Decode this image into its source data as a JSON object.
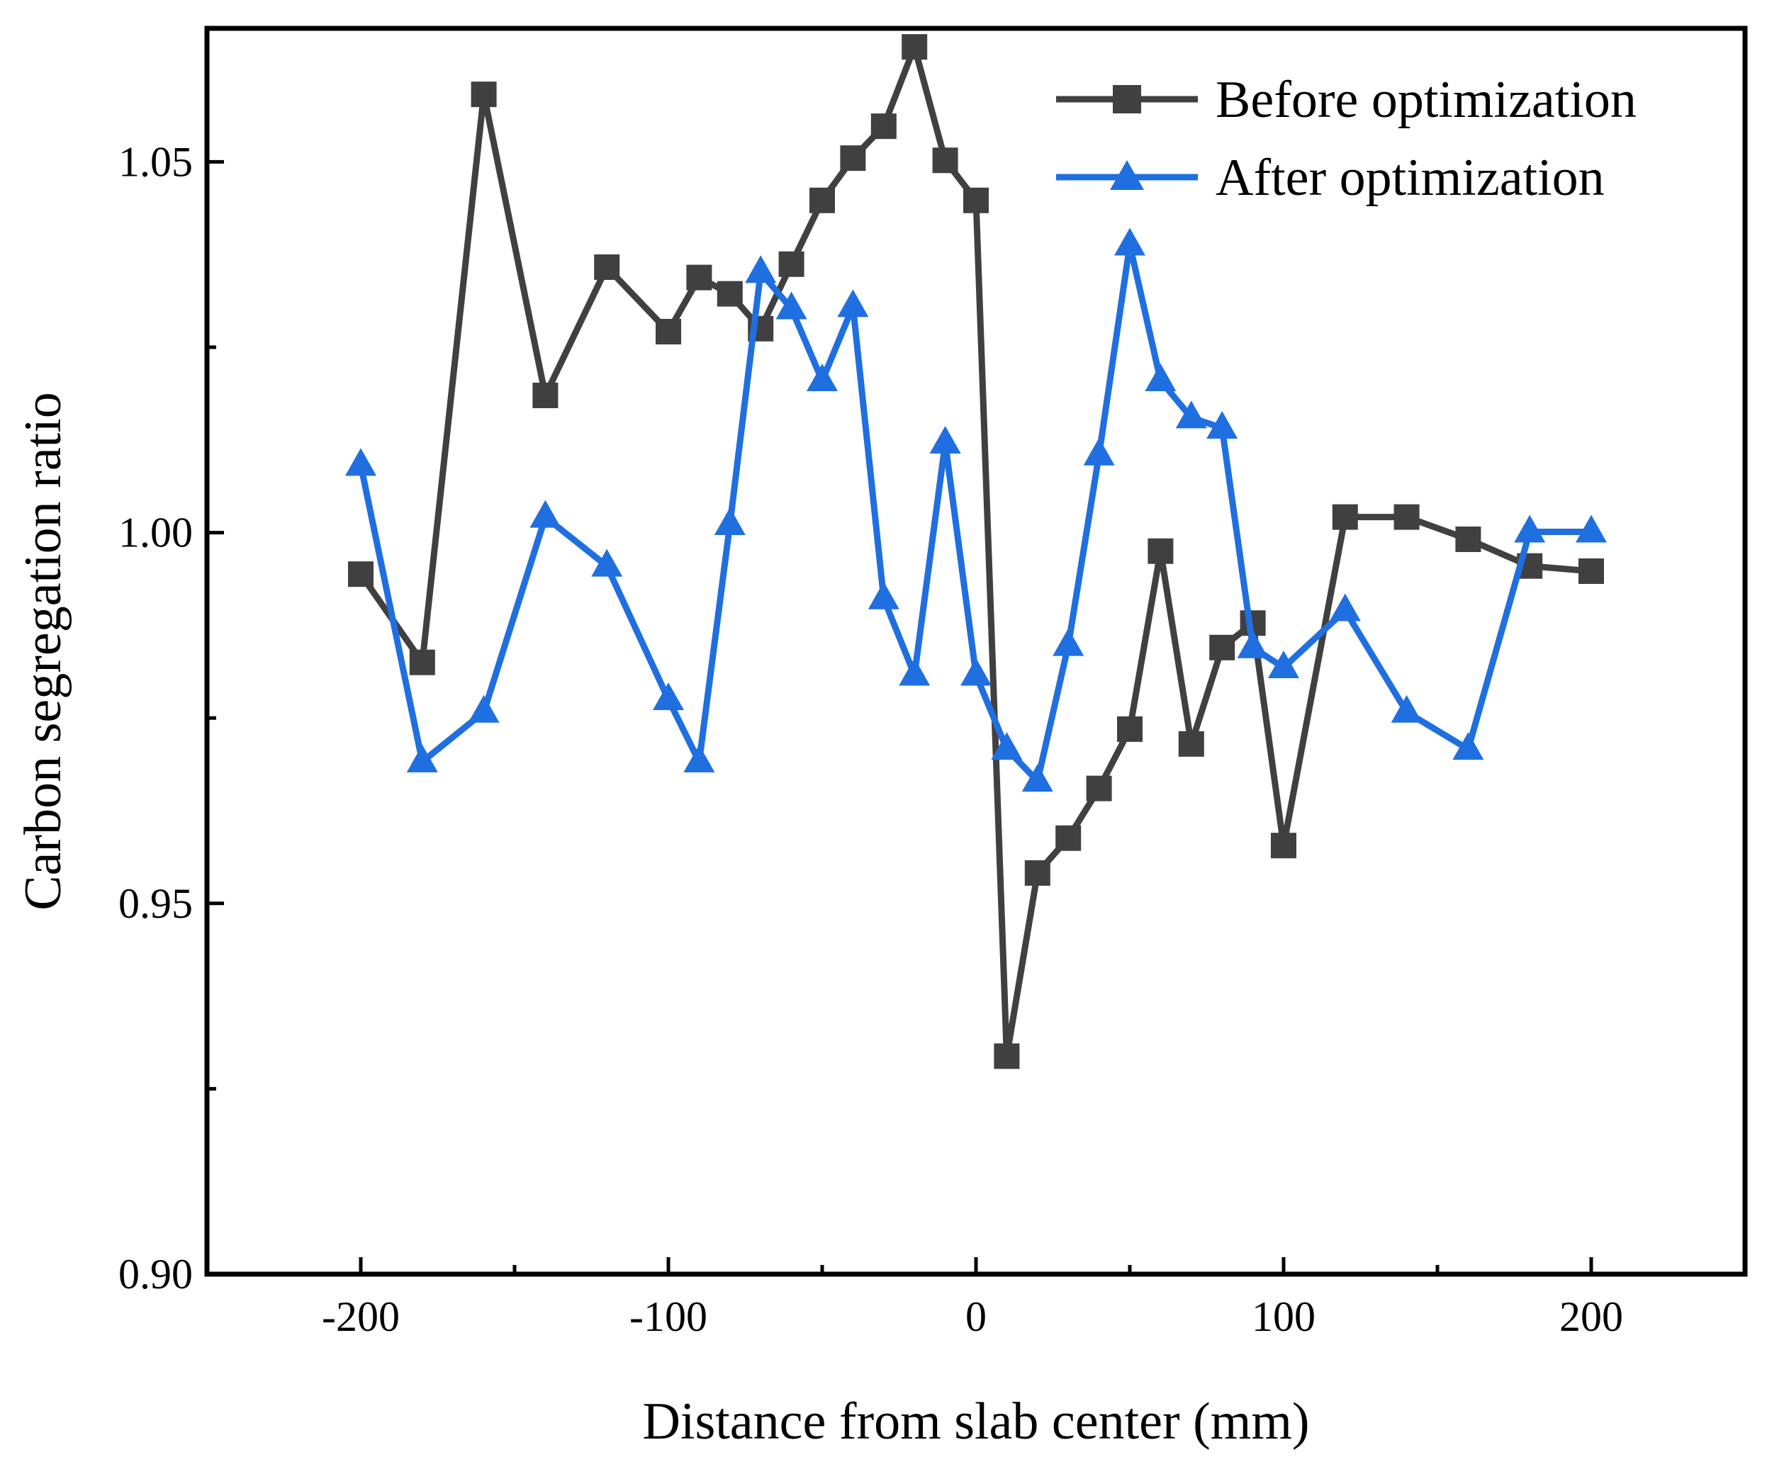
{
  "chart_data": {
    "type": "line",
    "title": "",
    "xlabel": "Distance from slab center (mm)",
    "ylabel": "Carbon segregation ratio",
    "xlim": [
      -250,
      250
    ],
    "ylim": [
      0.9,
      1.068
    ],
    "x_ticks": [
      -200,
      -100,
      0,
      100,
      200
    ],
    "x_tick_labels": [
      "-200",
      "-100",
      "0",
      "100",
      "200"
    ],
    "y_ticks": [
      0.9,
      0.95,
      1.0,
      1.05
    ],
    "y_tick_labels": [
      "0.90",
      "0.95",
      "1.00",
      "1.05"
    ],
    "grid": false,
    "legend_position": "top-right",
    "series": [
      {
        "name": "Before optimization",
        "color": "#404040",
        "marker": "square",
        "x": [
          -200,
          -180,
          -160,
          -140,
          -120,
          -100,
          -90,
          -80,
          -70,
          -60,
          -50,
          -40,
          -30,
          -20,
          -10,
          0,
          10,
          20,
          30,
          40,
          50,
          60,
          70,
          80,
          90,
          100,
          120,
          140,
          160,
          180,
          200
        ],
        "y": [
          0.9944,
          0.9825,
          1.0591,
          1.0185,
          1.0358,
          1.0271,
          1.0344,
          1.0322,
          1.0275,
          1.0362,
          1.0448,
          1.0505,
          1.0548,
          1.0655,
          1.0502,
          1.0448,
          0.9294,
          0.9541,
          0.9588,
          0.9655,
          0.9735,
          0.9975,
          0.9715,
          0.9845,
          0.9878,
          0.9578,
          1.0021,
          1.0021,
          0.9991,
          0.9955,
          0.9948
        ]
      },
      {
        "name": "After optimization",
        "color": "#1f6fe0",
        "marker": "triangle",
        "x": [
          -200,
          -180,
          -160,
          -140,
          -120,
          -100,
          -90,
          -80,
          -70,
          -60,
          -50,
          -40,
          -30,
          -20,
          -10,
          0,
          10,
          20,
          30,
          40,
          50,
          60,
          70,
          80,
          90,
          100,
          120,
          140,
          160,
          180,
          200
        ],
        "y": [
          1.0091,
          0.9691,
          0.9758,
          1.0021,
          0.9955,
          0.9775,
          0.9691,
          1.0011,
          1.0351,
          1.0302,
          1.0205,
          1.0305,
          0.9911,
          0.9808,
          1.0121,
          0.9808,
          0.9708,
          0.9665,
          0.9848,
          1.0105,
          1.0388,
          1.0205,
          1.0155,
          1.0141,
          0.9845,
          0.9818,
          0.9895,
          0.9758,
          0.9708,
          1.0001,
          1.0001
        ]
      }
    ]
  }
}
